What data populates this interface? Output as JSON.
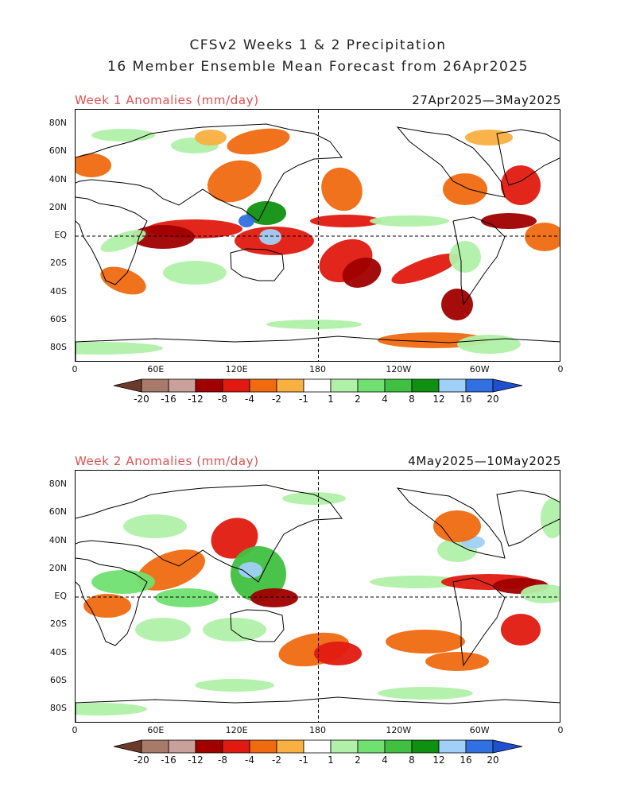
{
  "title_line1": "CFSv2 Weeks 1 & 2 Precipitation",
  "title_line2": "16 Member Ensemble Mean Forecast from 26Apr2025",
  "panels": [
    {
      "label": "Week 1 Anomalies (mm/day)",
      "date_range": "27Apr2025—3May2025"
    },
    {
      "label": "Week 2 Anomalies (mm/day)",
      "date_range": "4May2025—10May2025"
    }
  ],
  "lat_labels": [
    "80N",
    "60N",
    "40N",
    "20N",
    "EQ",
    "20S",
    "40S",
    "60S",
    "80S"
  ],
  "lon_labels": [
    "0",
    "60E",
    "120E",
    "180",
    "120W",
    "60W",
    "0"
  ],
  "colorbar": {
    "labels": [
      "-20",
      "-16",
      "-12",
      "-8",
      "-4",
      "-2",
      "-1",
      "1",
      "2",
      "4",
      "8",
      "12",
      "16",
      "20"
    ],
    "colors": [
      "#6b3a2a",
      "#a87a6a",
      "#c9a09a",
      "#a00000",
      "#e01a10",
      "#f06a10",
      "#f8b040",
      "#ffffff",
      "#b0f0a8",
      "#70e070",
      "#40c040",
      "#109010",
      "#a0d0f8",
      "#3070e0",
      "#2050d0"
    ]
  }
}
